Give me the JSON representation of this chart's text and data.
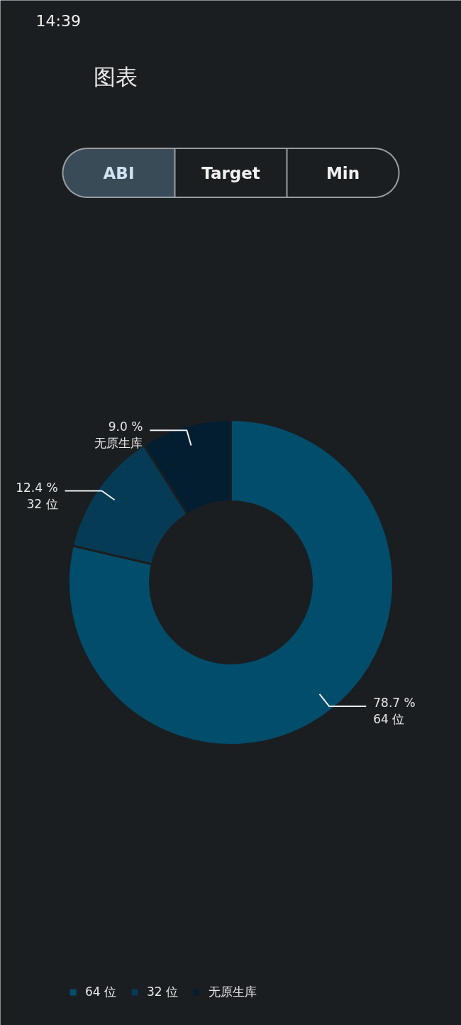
{
  "chart_data": {
    "type": "donut",
    "title": "图表",
    "categories": [
      "64 位",
      "32 位",
      "无原生库"
    ],
    "values": [
      78.7,
      12.4,
      9.0
    ],
    "colors": [
      "#004e6c",
      "#053b55",
      "#021e30"
    ],
    "value_labels": [
      "78.7 %",
      "12.4 %",
      "9.0 %"
    ],
    "legend": "bottom left",
    "annotations": [
      "14:39",
      "ABI",
      "Target",
      "Min"
    ]
  }
}
